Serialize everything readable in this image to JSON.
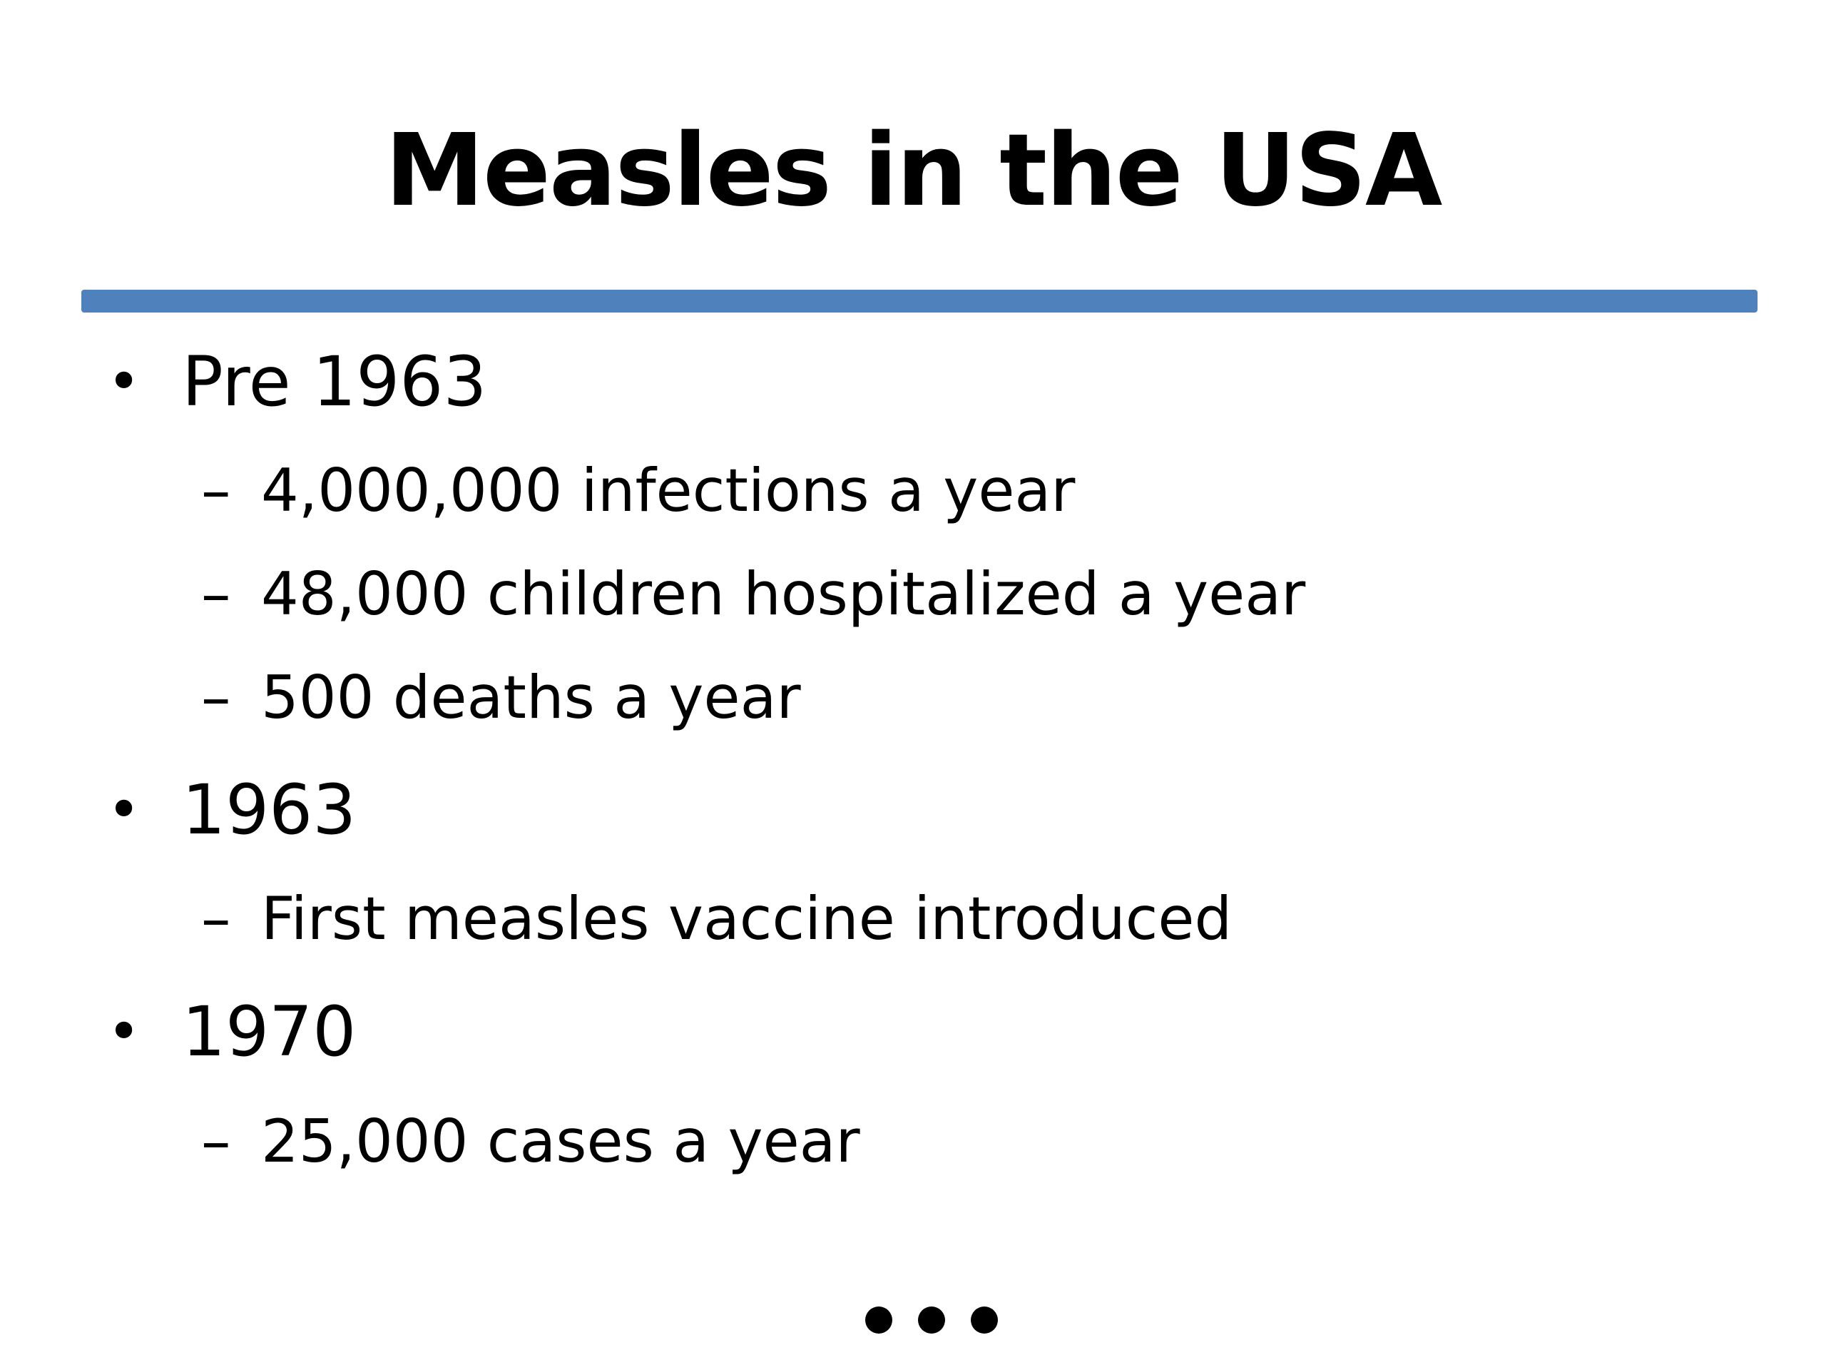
{
  "slide": {
    "title": "Measles in the USA",
    "accent_color": "#4f81bd",
    "bullet_marker": "•",
    "sub_marker": "–",
    "items": [
      {
        "text": "Pre 1963",
        "subitems": [
          "4,000,000 infections a year",
          "48,000 children hospitalized a year",
          "500 deaths a year"
        ]
      },
      {
        "text": "1963",
        "subitems": [
          "First measles vaccine introduced"
        ]
      },
      {
        "text": "1970",
        "subitems": [
          "25,000 cases a year"
        ]
      }
    ],
    "continuation_icon": "ellipsis-icon"
  }
}
